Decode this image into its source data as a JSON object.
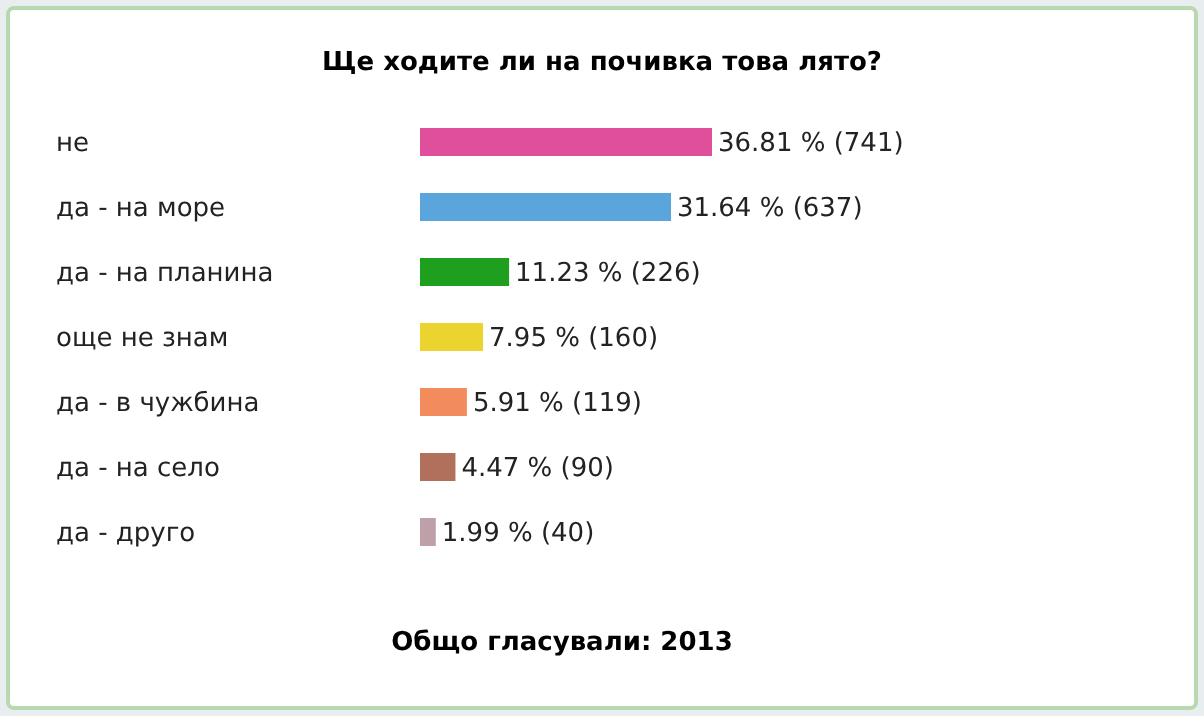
{
  "chart_data": {
    "type": "bar",
    "orientation": "horizontal",
    "title": "Ще ходите ли на почивка това лято?",
    "categories": [
      "не",
      "да - на море",
      "да - на планина",
      "още не знам",
      "да - в чужбина",
      "да - на село",
      "да - друго"
    ],
    "values": [
      36.81,
      31.64,
      11.23,
      7.95,
      5.91,
      4.47,
      1.99
    ],
    "colors": [
      "#e0509a",
      "#5aa6dc",
      "#1ea01e",
      "#ecd430",
      "#f28c5c",
      "#b0705c",
      "#c0a0a8"
    ],
    "value_labels": [
      "36.81 % (741)",
      "31.64 % (637)",
      "11.23 % (226)",
      "7.95 % (160)",
      "5.91 % (119)",
      "4.47 % (90)",
      "1.99 % (40)"
    ],
    "annotations": [
      "Общо гласували: 2013"
    ]
  }
}
